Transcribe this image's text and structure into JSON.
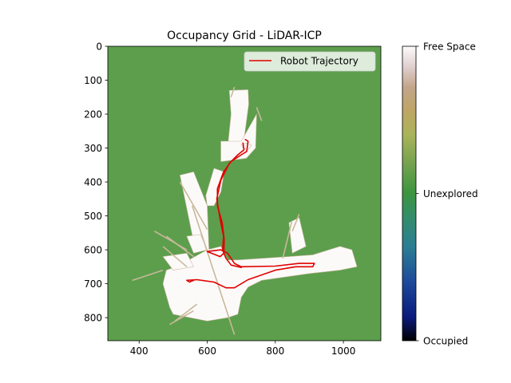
{
  "chart_data": {
    "type": "heatmap",
    "title": "Occupancy Grid - LiDAR-ICP",
    "xlabel": "",
    "ylabel": "",
    "xlim": [
      308,
      1110
    ],
    "ylim": [
      868,
      0
    ],
    "x_ticks": [
      400,
      600,
      800,
      1000
    ],
    "y_ticks": [
      0,
      100,
      200,
      300,
      400,
      500,
      600,
      700,
      800
    ],
    "y_inverted": true,
    "grid": false,
    "legend": {
      "position": "top-right",
      "entries": [
        "Robot Trajectory"
      ]
    },
    "colorbar": {
      "colormap": "gist_earth",
      "labels": [
        "Occupied",
        "Unexplored",
        "Free Space"
      ],
      "values": [
        0,
        0.5,
        1.0
      ]
    },
    "background": {
      "label": "Unexplored",
      "color": "#5c9e4c"
    },
    "free_space_regions": [
      [
        [
          665,
          130
        ],
        [
          720,
          128
        ],
        [
          722,
          170
        ],
        [
          710,
          260
        ],
        [
          700,
          300
        ],
        [
          660,
          300
        ],
        [
          670,
          200
        ],
        [
          665,
          130
        ]
      ],
      [
        [
          640,
          280
        ],
        [
          700,
          280
        ],
        [
          745,
          200
        ],
        [
          742,
          300
        ],
        [
          715,
          330
        ],
        [
          640,
          340
        ]
      ],
      [
        [
          700,
          290
        ],
        [
          715,
          285
        ],
        [
          730,
          292
        ],
        [
          720,
          305
        ],
        [
          705,
          300
        ]
      ],
      [
        [
          596,
          440
        ],
        [
          620,
          360
        ],
        [
          650,
          370
        ],
        [
          640,
          430
        ],
        [
          620,
          470
        ],
        [
          600,
          470
        ]
      ],
      [
        [
          520,
          380
        ],
        [
          560,
          370
        ],
        [
          600,
          470
        ],
        [
          605,
          600
        ],
        [
          565,
          600
        ]
      ],
      [
        [
          540,
          560
        ],
        [
          580,
          555
        ],
        [
          600,
          600
        ],
        [
          560,
          610
        ]
      ],
      [
        [
          510,
          650
        ],
        [
          600,
          600
        ],
        [
          640,
          590
        ],
        [
          660,
          630
        ],
        [
          690,
          630
        ],
        [
          840,
          620
        ],
        [
          910,
          615
        ],
        [
          990,
          590
        ],
        [
          1025,
          600
        ],
        [
          1040,
          650
        ],
        [
          990,
          660
        ],
        [
          900,
          670
        ],
        [
          760,
          690
        ],
        [
          720,
          710
        ],
        [
          700,
          740
        ],
        [
          690,
          790
        ],
        [
          660,
          800
        ],
        [
          600,
          810
        ],
        [
          550,
          800
        ],
        [
          500,
          790
        ],
        [
          490,
          770
        ],
        [
          470,
          700
        ],
        [
          480,
          660
        ]
      ],
      [
        [
          470,
          620
        ],
        [
          540,
          610
        ],
        [
          560,
          650
        ],
        [
          500,
          660
        ]
      ],
      [
        [
          840,
          520
        ],
        [
          870,
          505
        ],
        [
          890,
          590
        ],
        [
          850,
          610
        ]
      ]
    ],
    "free_space_rays": [
      [
        [
          556,
          470
        ],
        [
          680,
          850
        ]
      ],
      [
        [
          520,
          400
        ],
        [
          600,
          540
        ]
      ],
      [
        [
          445,
          545
        ],
        [
          540,
          600
        ]
      ],
      [
        [
          480,
          560
        ],
        [
          560,
          620
        ]
      ],
      [
        [
          470,
          590
        ],
        [
          540,
          650
        ]
      ],
      [
        [
          470,
          660
        ],
        [
          380,
          690
        ]
      ],
      [
        [
          570,
          760
        ],
        [
          505,
          810
        ]
      ],
      [
        [
          560,
          780
        ],
        [
          490,
          820
        ]
      ],
      [
        [
          848,
          518
        ],
        [
          822,
          625
        ]
      ],
      [
        [
          870,
          495
        ],
        [
          850,
          545
        ]
      ],
      [
        [
          745,
          180
        ],
        [
          760,
          220
        ]
      ],
      [
        [
          680,
          120
        ],
        [
          670,
          150
        ]
      ]
    ],
    "series": [
      {
        "name": "Robot Trajectory",
        "color": "#e00000",
        "points": [
          [
            712,
            275
          ],
          [
            720,
            280
          ],
          [
            716,
            310
          ],
          [
            700,
            320
          ],
          [
            670,
            340
          ],
          [
            648,
            370
          ],
          [
            630,
            420
          ],
          [
            630,
            470
          ],
          [
            644,
            520
          ],
          [
            650,
            570
          ],
          [
            649,
            610
          ],
          [
            638,
            620
          ],
          [
            600,
            605
          ],
          [
            640,
            600
          ],
          [
            660,
            610
          ],
          [
            680,
            640
          ],
          [
            700,
            650
          ],
          [
            800,
            648
          ],
          [
            870,
            640
          ],
          [
            915,
            640
          ],
          [
            910,
            650
          ],
          [
            860,
            650
          ],
          [
            800,
            660
          ],
          [
            720,
            688
          ],
          [
            680,
            712
          ],
          [
            655,
            712
          ],
          [
            620,
            695
          ],
          [
            570,
            688
          ],
          [
            540,
            690
          ],
          [
            548,
            695
          ],
          [
            560,
            690
          ]
        ]
      },
      {
        "name": "",
        "color": "#e00000",
        "points": [
          [
            705,
            285
          ],
          [
            708,
            305
          ],
          [
            690,
            320
          ],
          [
            665,
            345
          ],
          [
            640,
            395
          ],
          [
            628,
            450
          ],
          [
            638,
            510
          ],
          [
            648,
            560
          ],
          [
            645,
            600
          ],
          [
            655,
            625
          ],
          [
            670,
            645
          ],
          [
            700,
            652
          ]
        ]
      }
    ]
  }
}
